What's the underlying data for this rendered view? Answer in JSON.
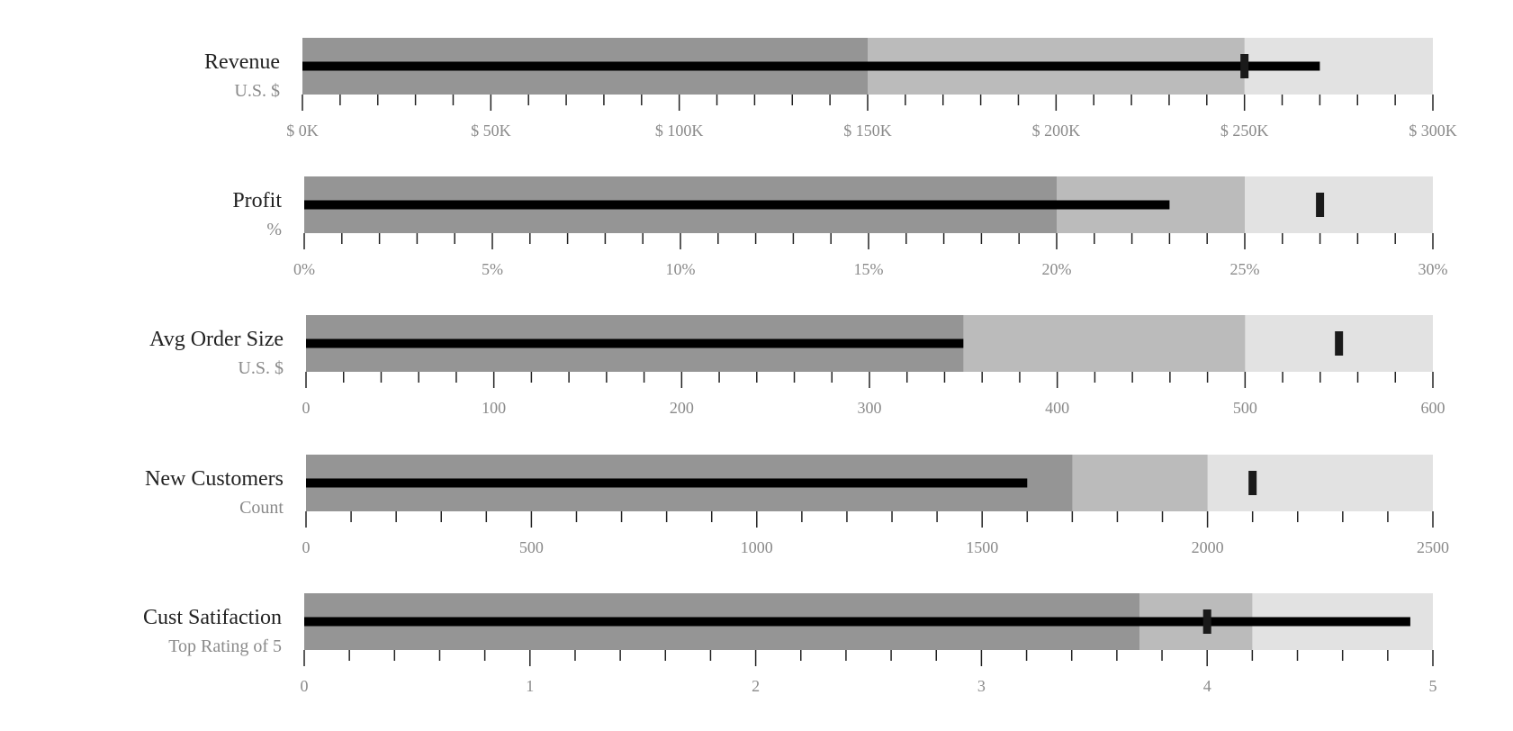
{
  "chart_data": [
    {
      "type": "bullet",
      "title": "Revenue",
      "subtitle": "U.S. $",
      "ranges": [
        150,
        250,
        300
      ],
      "measure": 270,
      "marker": 250,
      "xlim": [
        0,
        300
      ],
      "ticks": [
        0,
        50,
        100,
        150,
        200,
        250,
        300
      ],
      "tick_labels": [
        "$ 0K",
        "$ 50K",
        "$ 100K",
        "$ 150K",
        "$ 200K",
        "$ 250K",
        "$ 300K"
      ]
    },
    {
      "type": "bullet",
      "title": "Profit",
      "subtitle": "%",
      "ranges": [
        20,
        25,
        30
      ],
      "measure": 23,
      "marker": 27,
      "xlim": [
        0,
        30
      ],
      "ticks": [
        0,
        5,
        10,
        15,
        20,
        25,
        30
      ],
      "tick_labels": [
        "0%",
        "5%",
        "10%",
        "15%",
        "20%",
        "25%",
        "30%"
      ]
    },
    {
      "type": "bullet",
      "title": "Avg Order Size",
      "subtitle": "U.S. $",
      "ranges": [
        350,
        500,
        600
      ],
      "measure": 350,
      "marker": 550,
      "xlim": [
        0,
        600
      ],
      "ticks": [
        0,
        100,
        200,
        300,
        400,
        500,
        600
      ],
      "tick_labels": [
        "0",
        "100",
        "200",
        "300",
        "400",
        "500",
        "600"
      ]
    },
    {
      "type": "bullet",
      "title": "New Customers",
      "subtitle": "Count",
      "ranges": [
        1700,
        2000,
        2500
      ],
      "measure": 1600,
      "marker": 2100,
      "xlim": [
        0,
        2500
      ],
      "ticks": [
        0,
        500,
        1000,
        1500,
        2000,
        2500
      ],
      "tick_labels": [
        "0",
        "500",
        "1000",
        "1500",
        "2000",
        "2500"
      ]
    },
    {
      "type": "bullet",
      "title": "Cust Satifaction",
      "subtitle": "Top Rating of 5",
      "ranges": [
        3.7,
        4.2,
        5
      ],
      "measure": 4.9,
      "marker": 4,
      "xlim": [
        0,
        5
      ],
      "ticks": [
        0,
        1,
        2,
        3,
        4,
        5
      ],
      "tick_labels": [
        "0",
        "1",
        "2",
        "3",
        "4",
        "5"
      ]
    }
  ],
  "colors": {
    "range_light": "#e2e2e2",
    "range_mid": "#bbbbbb",
    "range_dark": "#959595",
    "measure": "#000000",
    "marker": "#1a1a1a"
  }
}
